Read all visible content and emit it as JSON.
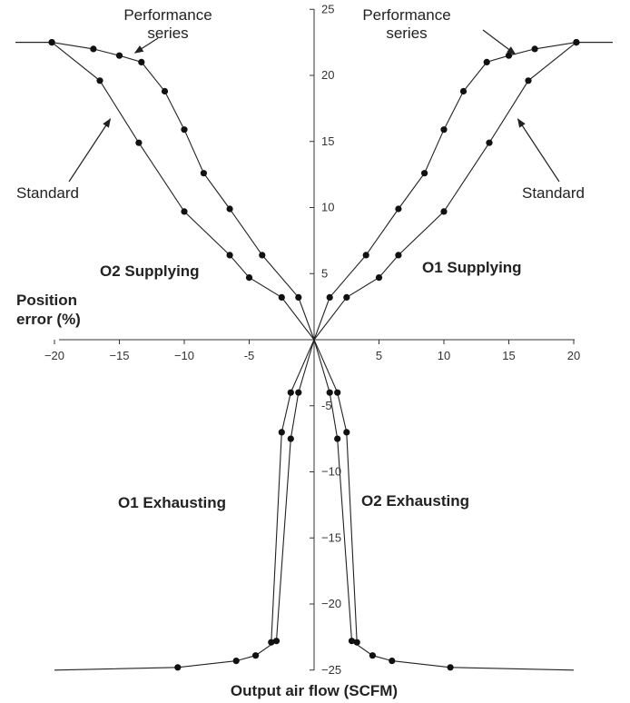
{
  "chart_data": {
    "type": "line",
    "title": "",
    "xlabel": "Position error (%)",
    "xlabel_lines": [
      "Position",
      "error (%)"
    ],
    "ylabel": "Output air flow (SCFM)",
    "xlim": [
      -20,
      20
    ],
    "ylim": [
      -25,
      25
    ],
    "x_tick_labels": [
      "−20",
      "−15",
      "−10",
      "-5",
      "5",
      "10",
      "15",
      "20"
    ],
    "x_tick_values": [
      -20,
      -15,
      -10,
      -5,
      5,
      10,
      15,
      20
    ],
    "y_tick_labels": [
      "25",
      "20",
      "15",
      "10",
      "5",
      "-5",
      "−10",
      "−15",
      "−20",
      "−25"
    ],
    "y_tick_values": [
      25,
      20,
      15,
      10,
      5,
      -5,
      -10,
      -15,
      -20,
      -25
    ],
    "grid": false,
    "series": [
      {
        "role": "o1-supplying-performance",
        "x": [
          0,
          1.2,
          4,
          6.5,
          8.5,
          10,
          11.5,
          13.3,
          15,
          17,
          20.2,
          23
        ],
        "y": [
          0,
          3.2,
          6.4,
          9.9,
          12.6,
          15.9,
          18.8,
          21,
          21.5,
          22,
          22.5,
          22.5
        ]
      },
      {
        "role": "o1-supplying-standard",
        "x": [
          0,
          2.5,
          5,
          6.5,
          10,
          13.5,
          16.5,
          20.2,
          23
        ],
        "y": [
          0,
          3.2,
          4.7,
          6.4,
          9.7,
          14.9,
          19.6,
          22.5,
          22.5
        ]
      },
      {
        "role": "o2-supplying-performance",
        "x": [
          0,
          -1.2,
          -4,
          -6.5,
          -8.5,
          -10,
          -11.5,
          -13.3,
          -15,
          -17,
          -20.2,
          -23
        ],
        "y": [
          0,
          3.2,
          6.4,
          9.9,
          12.6,
          15.9,
          18.8,
          21,
          21.5,
          22,
          22.5,
          22.5
        ]
      },
      {
        "role": "o2-supplying-standard",
        "x": [
          0,
          -2.5,
          -5,
          -6.5,
          -10,
          -13.5,
          -16.5,
          -20.2,
          -23
        ],
        "y": [
          0,
          3.2,
          4.7,
          6.4,
          9.7,
          14.9,
          19.6,
          22.5,
          22.5
        ]
      },
      {
        "role": "o2-exhausting-inner",
        "x": [
          0,
          1.2,
          1.8,
          2.9,
          4.5,
          6,
          10.5,
          20
        ],
        "y": [
          0,
          -4,
          -7.5,
          -22.8,
          -23.9,
          -24.3,
          -24.8,
          -25
        ]
      },
      {
        "role": "o2-exhausting-outer",
        "x": [
          0,
          1.8,
          2.5,
          3.3
        ],
        "y": [
          0,
          -4,
          -7,
          -22.9
        ]
      },
      {
        "role": "o1-exhausting-inner",
        "x": [
          0,
          -1.2,
          -1.8,
          -2.9,
          -4.5,
          -6,
          -10.5,
          -20
        ],
        "y": [
          0,
          -4,
          -7.5,
          -22.8,
          -23.9,
          -24.3,
          -24.8,
          -25
        ]
      },
      {
        "role": "o1-exhausting-outer",
        "x": [
          0,
          -1.8,
          -2.5,
          -3.3
        ],
        "y": [
          0,
          -4,
          -7,
          -22.9
        ]
      }
    ],
    "annotations": [
      {
        "text_lines": [
          "Performance",
          "series"
        ],
        "side": "left",
        "arrow_to": [
          -13.8,
          21.7
        ]
      },
      {
        "text_lines": [
          "Performance",
          "series"
        ],
        "side": "right",
        "arrow_to": [
          15.5,
          21.6
        ]
      },
      {
        "text_lines": [
          "Standard"
        ],
        "side": "left",
        "arrow_to": [
          -15.7,
          16.7
        ]
      },
      {
        "text_lines": [
          "Standard"
        ],
        "side": "right",
        "arrow_to": [
          15.7,
          16.7
        ]
      }
    ],
    "region_labels": [
      "O2 Supplying",
      "O1 Supplying",
      "O1 Exhausting",
      "O2 Exhausting"
    ]
  }
}
